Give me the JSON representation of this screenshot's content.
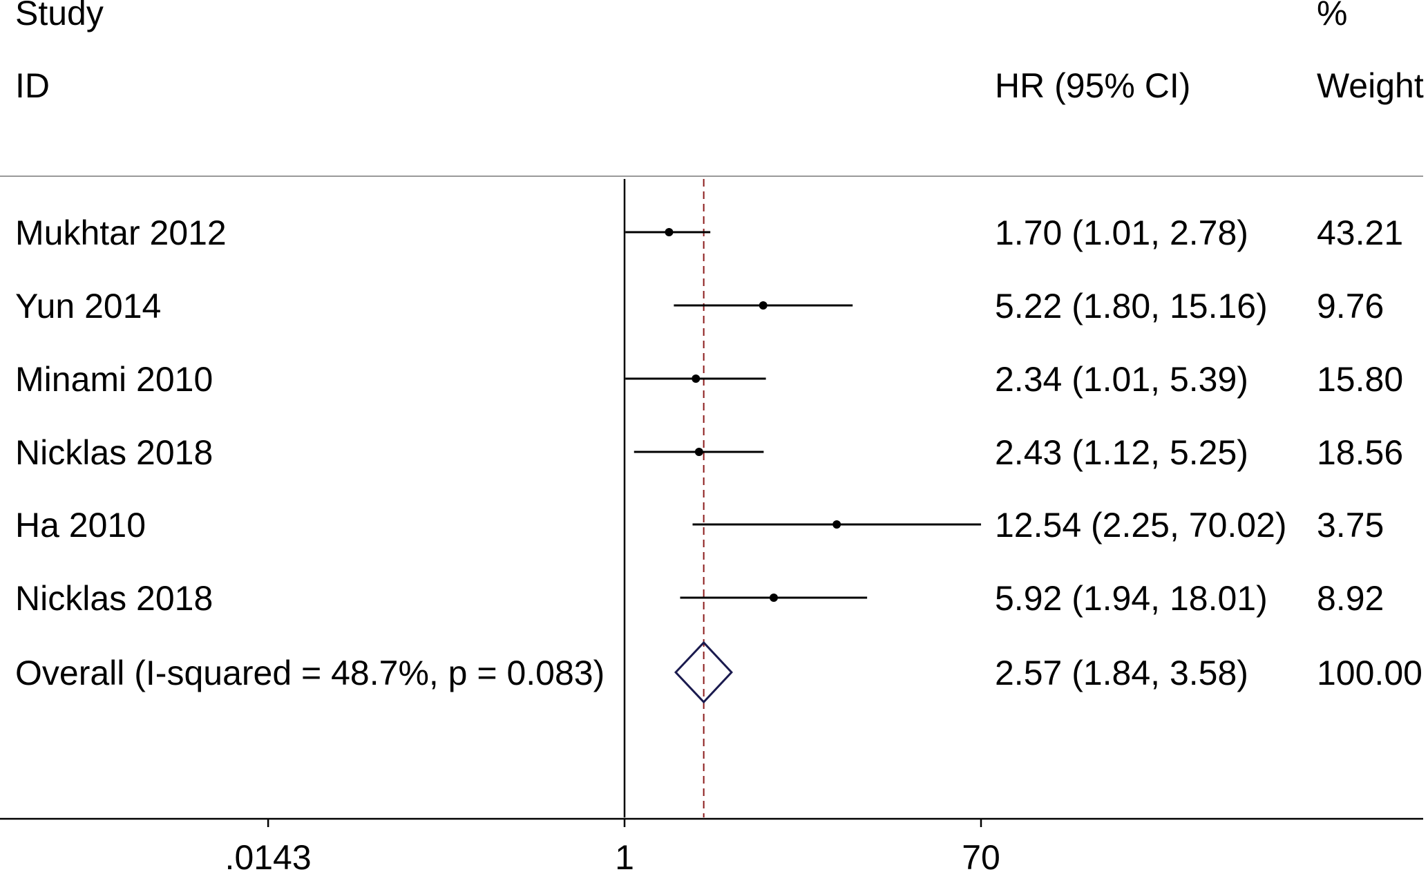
{
  "header": {
    "study_line1": "Study",
    "study_line2": "ID",
    "effect_label": "HR (95% CI)",
    "weight_line1": "%",
    "weight_line2": "Weight"
  },
  "colors": {
    "line": "#000000",
    "rule": "#999999",
    "reference": "#8b1a1a",
    "diamond": "#1a1a4e"
  },
  "chart_data": {
    "type": "forest",
    "scale": "log",
    "xlim": [
      0.0143,
      70
    ],
    "null_value": 1,
    "xticks": [
      {
        "value": 0.0143,
        "label": ".0143"
      },
      {
        "value": 1,
        "label": "1"
      },
      {
        "value": 70,
        "label": "70"
      }
    ],
    "studies": [
      {
        "name": "Mukhtar 2012",
        "hr": 1.7,
        "lo": 1.01,
        "hi": 2.78,
        "ci_text": "1.70 (1.01, 2.78)",
        "weight": "43.21"
      },
      {
        "name": "Yun 2014",
        "hr": 5.22,
        "lo": 1.8,
        "hi": 15.16,
        "ci_text": "5.22 (1.80, 15.16)",
        "weight": "9.76"
      },
      {
        "name": "Minami 2010",
        "hr": 2.34,
        "lo": 1.01,
        "hi": 5.39,
        "ci_text": "2.34 (1.01, 5.39)",
        "weight": "15.80"
      },
      {
        "name": "Nicklas 2018",
        "hr": 2.43,
        "lo": 1.12,
        "hi": 5.25,
        "ci_text": "2.43 (1.12, 5.25)",
        "weight": "18.56"
      },
      {
        "name": "Ha 2010",
        "hr": 12.54,
        "lo": 2.25,
        "hi": 70.02,
        "ci_text": "12.54 (2.25, 70.02)",
        "weight": "3.75"
      },
      {
        "name": "Nicklas 2018",
        "hr": 5.92,
        "lo": 1.94,
        "hi": 18.01,
        "ci_text": "5.92 (1.94, 18.01)",
        "weight": "8.92"
      }
    ],
    "overall": {
      "name": "Overall  (I-squared = 48.7%, p = 0.083)",
      "hr": 2.57,
      "lo": 1.84,
      "hi": 3.58,
      "ci_text": "2.57 (1.84, 3.58)",
      "weight": "100.00"
    }
  }
}
